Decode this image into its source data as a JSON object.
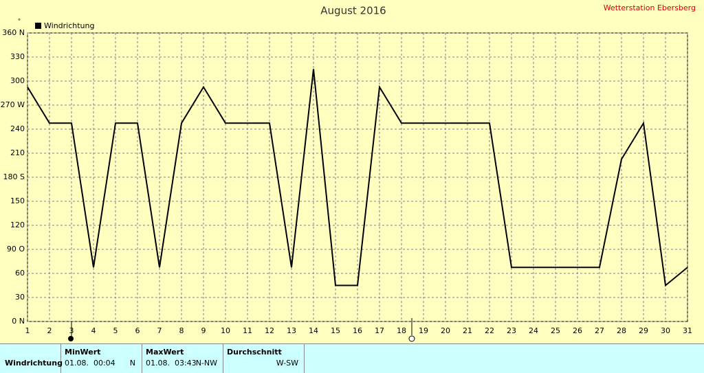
{
  "chart_data": {
    "type": "line",
    "title": "August 2016",
    "station": "Wetterstation Ebersberg",
    "y_label": "°",
    "x": [
      1,
      2,
      3,
      4,
      5,
      6,
      7,
      8,
      9,
      10,
      11,
      12,
      13,
      14,
      15,
      16,
      17,
      18,
      19,
      20,
      21,
      22,
      23,
      24,
      25,
      26,
      27,
      28,
      29,
      30,
      31
    ],
    "series": [
      {
        "name": "Windrichtung",
        "color": "#000000",
        "values": [
          292.5,
          247.5,
          247.5,
          67.5,
          247.5,
          247.5,
          67.5,
          247.5,
          292.5,
          247.5,
          247.5,
          247.5,
          67.5,
          315,
          45,
          45,
          292.5,
          247.5,
          247.5,
          247.5,
          247.5,
          247.5,
          67.5,
          67.5,
          67.5,
          67.5,
          67.5,
          202.5,
          247.5,
          45,
          67.5
        ]
      }
    ],
    "xlim": [
      1,
      31
    ],
    "ylim": [
      0,
      360
    ],
    "xticks": [
      1,
      2,
      3,
      4,
      5,
      6,
      7,
      8,
      9,
      10,
      11,
      12,
      13,
      14,
      15,
      16,
      17,
      18,
      19,
      20,
      21,
      22,
      23,
      24,
      25,
      26,
      27,
      28,
      29,
      30,
      31
    ],
    "yticks": [
      {
        "value": 0,
        "label": "0 N"
      },
      30,
      60,
      {
        "value": 90,
        "label": "90 O"
      },
      120,
      150,
      {
        "value": 180,
        "label": "180 S"
      },
      210,
      240,
      {
        "value": 270,
        "label": "270 W"
      },
      300,
      330,
      {
        "value": 360,
        "label": "360 N"
      }
    ],
    "grid": true,
    "legend_position": "top left"
  },
  "table": {
    "headers": [
      "MinWert",
      "MaxWert",
      "Durchschnitt"
    ],
    "row": {
      "label": "Windrichtung",
      "min_time": "01.08.  00:04",
      "min_dir": "N",
      "max_time": "01.08.  03:43",
      "max_dir": "N-NW",
      "avg": "W-SW"
    }
  }
}
